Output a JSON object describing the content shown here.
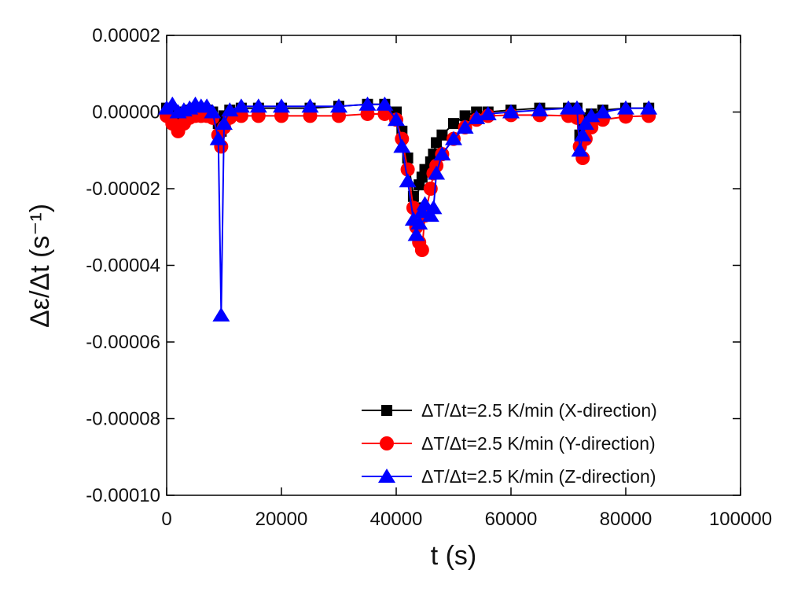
{
  "chart_data": {
    "type": "line",
    "xlabel": "t (s)",
    "ylabel": "Δε/Δt (s⁻¹)",
    "x": [
      0,
      1000,
      2000,
      3000,
      4000,
      5000,
      6000,
      7000,
      8000,
      9000,
      9500,
      10000,
      11000,
      13000,
      16000,
      20000,
      25000,
      30000,
      35000,
      38000,
      40000,
      41000,
      42000,
      43000,
      43500,
      44000,
      44500,
      45000,
      46000,
      46500,
      47000,
      48000,
      50000,
      52000,
      54000,
      56000,
      60000,
      65000,
      70000,
      71500,
      72000,
      72500,
      73000,
      74000,
      76000,
      80000,
      84000
    ],
    "series": [
      {
        "name": "ΔT/Δt=2.5 K/min (X-direction)",
        "color": "#000000",
        "marker": "square",
        "values": [
          1e-06,
          5e-07,
          -2e-06,
          0,
          5e-07,
          1e-06,
          1e-06,
          5e-07,
          0,
          -3e-06,
          -5e-06,
          -1e-06,
          5e-07,
          1e-06,
          1e-06,
          1e-06,
          1e-06,
          1.5e-06,
          2e-06,
          2e-06,
          0,
          -5e-06,
          -1.2e-05,
          -2.2e-05,
          -2.5e-05,
          -1.9e-05,
          -1.7e-05,
          -1.5e-05,
          -1.3e-05,
          -1.1e-05,
          -8e-06,
          -6e-06,
          -3e-06,
          -1e-06,
          0,
          0,
          5e-07,
          1e-06,
          1e-06,
          1e-06,
          -6e-06,
          -3e-06,
          -1.5e-06,
          -5e-07,
          5e-07,
          1e-06,
          1e-06
        ]
      },
      {
        "name": "ΔT/Δt=2.5 K/min (Y-direction)",
        "color": "#ff0000",
        "marker": "circle",
        "values": [
          -1e-06,
          -3e-06,
          -5e-06,
          -3e-06,
          -1.5e-06,
          -1e-06,
          -1e-06,
          -1e-06,
          -1.5e-06,
          -6e-06,
          -9e-06,
          -4e-06,
          -1.5e-06,
          -1e-06,
          -1e-06,
          -1e-06,
          -1e-06,
          -1e-06,
          -5e-07,
          -5e-07,
          -2e-06,
          -7e-06,
          -1.5e-05,
          -2.5e-05,
          -3e-05,
          -3.4e-05,
          -3.6e-05,
          -2.7e-05,
          -2e-05,
          -1.6e-05,
          -1.4e-05,
          -1.1e-05,
          -7e-06,
          -4e-06,
          -2e-06,
          -1e-06,
          -8e-07,
          -8e-07,
          -1e-06,
          -1.5e-06,
          -9e-06,
          -1.2e-05,
          -7e-06,
          -4e-06,
          -2e-06,
          -1.2e-06,
          -1e-06
        ]
      },
      {
        "name": "ΔT/Δt=2.5 K/min (Z-direction)",
        "color": "#0000ff",
        "marker": "triangle",
        "values": [
          1e-06,
          2e-06,
          0,
          5e-07,
          1e-06,
          2e-06,
          1.5e-06,
          1.5e-06,
          0,
          -7e-06,
          -5.3e-05,
          -3e-06,
          5e-07,
          1.5e-06,
          1.5e-06,
          1.5e-06,
          1.5e-06,
          1.5e-06,
          2e-06,
          2e-06,
          -2e-06,
          -9e-06,
          -1.8e-05,
          -2.8e-05,
          -3.2e-05,
          -2.9e-05,
          -2.6e-05,
          -2.4e-05,
          -2.7e-05,
          -2.5e-05,
          -1.6e-05,
          -1.1e-05,
          -7e-06,
          -4e-06,
          -1.5e-06,
          -5e-07,
          0,
          5e-07,
          1e-06,
          1e-06,
          -1e-05,
          -6e-06,
          -3e-06,
          -1e-06,
          0,
          1e-06,
          1e-06
        ]
      }
    ],
    "xlim": [
      0,
      100000
    ],
    "xticks": [
      0,
      20000,
      40000,
      60000,
      80000,
      100000
    ],
    "ylim": [
      -0.0001,
      2e-05
    ],
    "yticks": [
      {
        "value": 2e-05,
        "label": "0.00002"
      },
      {
        "value": 0,
        "label": "0.00000"
      },
      {
        "value": -2e-05,
        "label": "-0.00002"
      },
      {
        "value": -4e-05,
        "label": "-0.00004"
      },
      {
        "value": -6e-05,
        "label": "-0.00006"
      },
      {
        "value": -8e-05,
        "label": "-0.00008"
      },
      {
        "value": -0.0001,
        "label": "-0.00010"
      }
    ],
    "grid": false,
    "legend": "lower right"
  }
}
